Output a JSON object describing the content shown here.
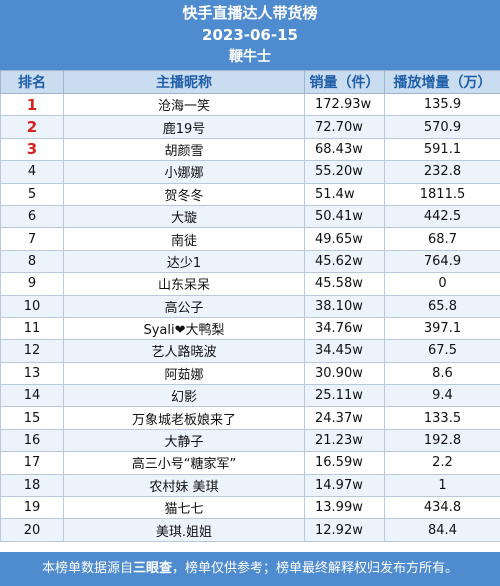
{
  "header": {
    "title": "快手直播达人带货榜",
    "date": "2023-06-15",
    "brand": "鞭牛士"
  },
  "columns": {
    "rank": "排名",
    "name": "主播昵称",
    "sales": "销量（件）",
    "play": "播放增量（万）"
  },
  "rows": [
    {
      "rank": "1",
      "name": "沧海一笑",
      "sales": "172.93w",
      "play": "135.9"
    },
    {
      "rank": "2",
      "name": "鹿19号",
      "sales": "72.70w",
      "play": "570.9"
    },
    {
      "rank": "3",
      "name": "胡颜雪",
      "sales": "68.43w",
      "play": "591.1"
    },
    {
      "rank": "4",
      "name": "小娜娜",
      "sales": "55.20w",
      "play": "232.8"
    },
    {
      "rank": "5",
      "name": "贺冬冬",
      "sales": "51.4w",
      "play": "1811.5"
    },
    {
      "rank": "6",
      "name": "大璇",
      "sales": "50.41w",
      "play": "442.5"
    },
    {
      "rank": "7",
      "name": "南徒",
      "sales": "49.65w",
      "play": "68.7"
    },
    {
      "rank": "8",
      "name": "达少1",
      "sales": "45.62w",
      "play": "764.9"
    },
    {
      "rank": "9",
      "name": "山东呆呆",
      "sales": "45.58w",
      "play": "0"
    },
    {
      "rank": "10",
      "name": "高公子",
      "sales": "38.10w",
      "play": "65.8"
    },
    {
      "rank": "11",
      "name": "Syali❤大鸭梨",
      "sales": "34.76w",
      "play": "397.1"
    },
    {
      "rank": "12",
      "name": "艺人路晓波",
      "sales": "34.45w",
      "play": "67.5"
    },
    {
      "rank": "13",
      "name": "阿茹娜",
      "sales": "30.90w",
      "play": "8.6"
    },
    {
      "rank": "14",
      "name": "幻影",
      "sales": "25.11w",
      "play": "9.4"
    },
    {
      "rank": "15",
      "name": "万象城老板娘来了",
      "sales": "24.37w",
      "play": "133.5"
    },
    {
      "rank": "16",
      "name": "大静子",
      "sales": "21.23w",
      "play": "192.8"
    },
    {
      "rank": "17",
      "name": "高三小号“糖家军”",
      "sales": "16.59w",
      "play": "2.2"
    },
    {
      "rank": "18",
      "name": "农村妹 美琪",
      "sales": "14.97w",
      "play": "1"
    },
    {
      "rank": "19",
      "name": "猫七七",
      "sales": "13.99w",
      "play": "434.8"
    },
    {
      "rank": "20",
      "name": "美琪.姐姐",
      "sales": "12.92w",
      "play": "84.4"
    }
  ],
  "footer": {
    "prefix": "本榜单数据源自",
    "source": "三眼查",
    "suffix": "，榜单仅供参考；榜单最终解释权归发布方所有。"
  }
}
